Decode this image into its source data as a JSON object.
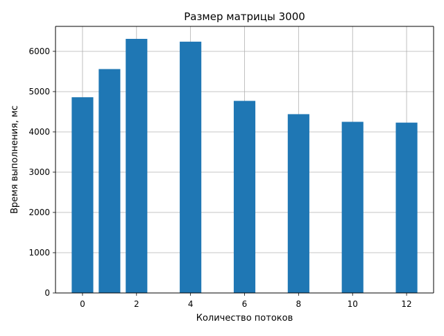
{
  "chart_data": {
    "type": "bar",
    "title": "Размер матрицы 3000",
    "xlabel": "Количество потоков",
    "ylabel": "Время выполнения, мс",
    "x": [
      0,
      1,
      2,
      4,
      6,
      8,
      10,
      12
    ],
    "values": [
      4860,
      5560,
      6310,
      6240,
      4770,
      4440,
      4250,
      4230
    ],
    "xticks": [
      0,
      2,
      4,
      6,
      8,
      10,
      12
    ],
    "yticks": [
      0,
      1000,
      2000,
      3000,
      4000,
      5000,
      6000
    ],
    "xlim": [
      -1.0,
      13.0
    ],
    "ylim": [
      0,
      6620
    ],
    "bar_width": 0.8,
    "bar_color": "#1f77b4",
    "grid": true
  }
}
